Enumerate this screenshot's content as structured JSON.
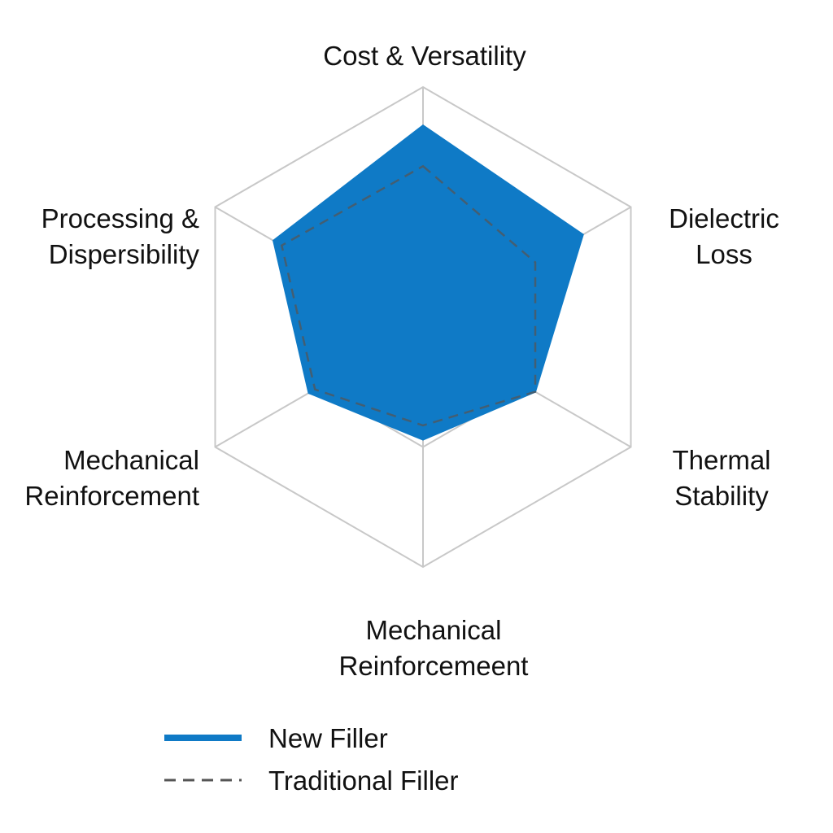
{
  "chart_data": {
    "type": "radar",
    "categories": [
      [
        "Cost & Versatility"
      ],
      [
        "Dielectric",
        "Loss"
      ],
      [
        "Thermal",
        "Stability"
      ],
      [
        "Mechanical",
        "Reinforcemeent"
      ],
      [
        "Mechanical",
        "Reinforcement"
      ],
      [
        "Processing &",
        "Dispersibility"
      ]
    ],
    "rlim": [
      0,
      100
    ],
    "grid_levels": [
      50,
      100
    ],
    "series": [
      {
        "name": "New Filler",
        "values": [
          84,
          77,
          54,
          47,
          55,
          72
        ],
        "color": "#0f7ac6",
        "fill": true,
        "line": "solid"
      },
      {
        "name": "Traditional Filler",
        "values": [
          67,
          54,
          54,
          41,
          52,
          68
        ],
        "color": "#555555",
        "fill": false,
        "line": "dashed"
      }
    ],
    "legend": "bottom",
    "title": ""
  }
}
